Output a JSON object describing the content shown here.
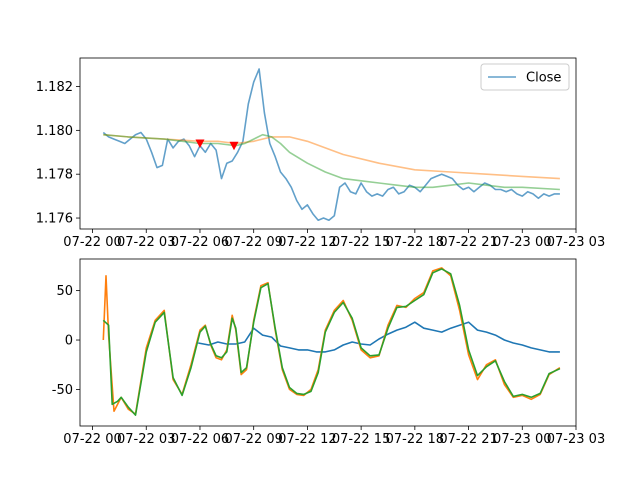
{
  "chart_data": [
    {
      "type": "line",
      "x_ticks": [
        "07-22 00",
        "07-22 03",
        "07-22 06",
        "07-22 09",
        "07-22 12",
        "07-22 15",
        "07-22 18",
        "07-22 21",
        "07-23 00",
        "07-23 03"
      ],
      "xlim_hours": [
        -0.7,
        27.0
      ],
      "ylim": [
        1.1755,
        1.1833
      ],
      "y_ticks": [
        "1.176",
        "1.178",
        "1.180",
        "1.182"
      ],
      "y_tick_values": [
        1.176,
        1.178,
        1.18,
        1.182
      ],
      "legend": {
        "position": "top-right",
        "entries": [
          "Close"
        ]
      },
      "series": [
        {
          "name": "Close",
          "color": "#1f77b4",
          "opacity": 0.7,
          "x": [
            0.6,
            0.9,
            1.2,
            1.5,
            1.8,
            2.1,
            2.4,
            2.7,
            3.0,
            3.3,
            3.6,
            3.9,
            4.2,
            4.5,
            4.8,
            5.1,
            5.4,
            5.7,
            6.0,
            6.3,
            6.6,
            6.9,
            7.2,
            7.5,
            7.8,
            8.1,
            8.4,
            8.7,
            9.0,
            9.3,
            9.6,
            9.9,
            10.2,
            10.5,
            10.8,
            11.1,
            11.4,
            11.7,
            12.0,
            12.3,
            12.6,
            12.9,
            13.2,
            13.5,
            13.8,
            14.1,
            14.4,
            14.7,
            15.0,
            15.3,
            15.6,
            15.9,
            16.2,
            16.5,
            16.8,
            17.1,
            17.4,
            17.7,
            18.0,
            18.3,
            18.6,
            18.9,
            19.2,
            19.5,
            19.8,
            20.1,
            20.4,
            20.7,
            21.0,
            21.3,
            21.6,
            21.9,
            22.2,
            22.5,
            22.8,
            23.1,
            23.4,
            23.7,
            24.0,
            24.3,
            24.6,
            24.9,
            25.2,
            25.5,
            25.8,
            26.1
          ],
          "y": [
            1.1799,
            1.1797,
            1.1796,
            1.1795,
            1.1794,
            1.1796,
            1.1798,
            1.1799,
            1.1796,
            1.179,
            1.1783,
            1.1784,
            1.1796,
            1.1792,
            1.1795,
            1.1796,
            1.1793,
            1.1788,
            1.1793,
            1.179,
            1.1794,
            1.1791,
            1.1778,
            1.1785,
            1.1786,
            1.179,
            1.1795,
            1.1812,
            1.1822,
            1.1828,
            1.1808,
            1.1794,
            1.1788,
            1.1781,
            1.1778,
            1.1774,
            1.1768,
            1.1764,
            1.1766,
            1.1762,
            1.1759,
            1.176,
            1.1759,
            1.1761,
            1.1774,
            1.1776,
            1.1772,
            1.1771,
            1.1776,
            1.1772,
            1.177,
            1.1771,
            1.177,
            1.1773,
            1.1774,
            1.1771,
            1.1772,
            1.1775,
            1.1774,
            1.1772,
            1.1775,
            1.1778,
            1.1779,
            1.178,
            1.1779,
            1.1778,
            1.1775,
            1.1773,
            1.1774,
            1.1772,
            1.1774,
            1.1776,
            1.1775,
            1.1773,
            1.1773,
            1.1772,
            1.1773,
            1.1771,
            1.177,
            1.1772,
            1.1771,
            1.1769,
            1.1771,
            1.177,
            1.1771,
            1.1771
          ]
        },
        {
          "color": "#ff7f0e",
          "opacity": 0.5,
          "x": [
            0.6,
            2,
            4,
            6,
            7,
            8,
            9,
            10,
            11,
            12,
            13,
            14,
            16,
            18,
            20,
            22,
            24,
            26.1
          ],
          "y": [
            1.1798,
            1.1797,
            1.1796,
            1.1795,
            1.1795,
            1.1794,
            1.1795,
            1.1797,
            1.1797,
            1.1795,
            1.1792,
            1.1789,
            1.1785,
            1.1782,
            1.1781,
            1.178,
            1.1779,
            1.1778
          ]
        },
        {
          "color": "#2ca02c",
          "opacity": 0.5,
          "x": [
            0.6,
            2,
            4,
            6,
            7,
            8,
            8.5,
            9,
            9.5,
            10,
            10.5,
            11,
            12,
            13,
            14,
            15,
            16,
            17,
            18,
            19,
            20,
            21,
            22,
            23,
            24,
            26.1
          ],
          "y": [
            1.1798,
            1.1797,
            1.1796,
            1.1794,
            1.1794,
            1.1793,
            1.1794,
            1.1796,
            1.1798,
            1.1797,
            1.1794,
            1.179,
            1.1785,
            1.1781,
            1.1778,
            1.1777,
            1.1776,
            1.1775,
            1.1774,
            1.1774,
            1.1775,
            1.1776,
            1.1775,
            1.1774,
            1.1774,
            1.1773
          ]
        }
      ],
      "markers": {
        "shape": "triangle-down",
        "color": "#ff0000",
        "points": [
          {
            "x": 6.0,
            "y": 1.1794
          },
          {
            "x": 7.9,
            "y": 1.1793
          }
        ]
      }
    },
    {
      "type": "line",
      "x_ticks": [
        "07-22 00",
        "07-22 03",
        "07-22 06",
        "07-22 09",
        "07-22 12",
        "07-22 15",
        "07-22 18",
        "07-22 21",
        "07-23 00",
        "07-23 03"
      ],
      "xlim_hours": [
        -0.7,
        27.0
      ],
      "ylim": [
        -87,
        82
      ],
      "y_ticks": [
        "-50",
        "0",
        "50"
      ],
      "y_tick_values": [
        -50,
        0,
        50
      ],
      "series": [
        {
          "color": "#1f77b4",
          "x": [
            5.9,
            6.5,
            7.0,
            7.5,
            8.0,
            8.5,
            9.0,
            9.5,
            10.0,
            10.5,
            11.0,
            11.5,
            12.0,
            12.5,
            13.0,
            13.5,
            14.0,
            14.5,
            15.0,
            15.5,
            16.0,
            16.5,
            17.0,
            17.5,
            18.0,
            18.5,
            19.0,
            19.5,
            20.0,
            20.5,
            21.0,
            21.5,
            22.0,
            22.5,
            23.0,
            23.5,
            24.0,
            24.5,
            25.0,
            25.5,
            26.1
          ],
          "y": [
            -3,
            -5,
            -2,
            -4,
            -4,
            -2,
            12,
            5,
            3,
            -6,
            -8,
            -10,
            -10,
            -12,
            -12,
            -10,
            -5,
            -2,
            -4,
            -5,
            1,
            6,
            10,
            13,
            18,
            12,
            10,
            8,
            12,
            15,
            18,
            10,
            8,
            5,
            0,
            -3,
            -5,
            -8,
            -10,
            -12,
            -12
          ]
        },
        {
          "color": "#ff7f0e",
          "x": [
            0.6,
            0.75,
            0.9,
            1.2,
            1.4,
            1.6,
            2.0,
            2.4,
            3.0,
            3.5,
            4.0,
            4.5,
            5.0,
            5.5,
            6.0,
            6.3,
            6.6,
            6.9,
            7.2,
            7.5,
            7.8,
            8.0,
            8.3,
            8.6,
            9.0,
            9.4,
            9.8,
            10.2,
            10.6,
            11.0,
            11.4,
            11.8,
            12.2,
            12.6,
            13.0,
            13.5,
            14.0,
            14.5,
            15.0,
            15.5,
            16.0,
            16.5,
            17.0,
            17.5,
            18.0,
            18.5,
            19.0,
            19.5,
            20.0,
            20.5,
            21.0,
            21.5,
            22.0,
            22.5,
            23.0,
            23.5,
            24.0,
            24.5,
            25.0,
            25.5,
            26.1
          ],
          "y": [
            0,
            65,
            5,
            -72,
            -65,
            -58,
            -70,
            -75,
            -8,
            20,
            30,
            -40,
            -55,
            -25,
            10,
            15,
            -5,
            -18,
            -20,
            -10,
            25,
            10,
            -35,
            -30,
            20,
            55,
            58,
            10,
            -30,
            -50,
            -55,
            -56,
            -50,
            -30,
            10,
            30,
            40,
            20,
            -10,
            -18,
            -16,
            15,
            35,
            33,
            42,
            48,
            70,
            73,
            65,
            30,
            -15,
            -40,
            -25,
            -20,
            -45,
            -58,
            -56,
            -60,
            -55,
            -35,
            -28
          ]
        },
        {
          "color": "#2ca02c",
          "x": [
            0.6,
            0.9,
            1.1,
            1.4,
            1.6,
            2.0,
            2.4,
            3.0,
            3.5,
            4.0,
            4.5,
            5.0,
            5.5,
            6.0,
            6.3,
            6.6,
            6.9,
            7.2,
            7.5,
            7.8,
            8.0,
            8.3,
            8.6,
            9.0,
            9.4,
            9.8,
            10.2,
            10.6,
            11.0,
            11.4,
            11.8,
            12.2,
            12.6,
            13.0,
            13.5,
            14.0,
            14.5,
            15.0,
            15.5,
            16.0,
            16.5,
            17.0,
            17.5,
            18.0,
            18.5,
            19.0,
            19.5,
            20.0,
            20.5,
            21.0,
            21.5,
            22.0,
            22.5,
            23.0,
            23.5,
            24.0,
            24.5,
            25.0,
            25.5,
            26.1
          ],
          "y": [
            20,
            15,
            -65,
            -62,
            -58,
            -68,
            -76,
            -12,
            18,
            28,
            -38,
            -56,
            -28,
            8,
            14,
            -4,
            -16,
            -18,
            -12,
            22,
            12,
            -33,
            -28,
            18,
            53,
            57,
            12,
            -28,
            -48,
            -54,
            -55,
            -52,
            -33,
            8,
            28,
            38,
            22,
            -8,
            -16,
            -15,
            12,
            33,
            34,
            40,
            46,
            68,
            72,
            67,
            35,
            -10,
            -36,
            -27,
            -21,
            -42,
            -57,
            -55,
            -58,
            -54,
            -34,
            -29
          ]
        }
      ]
    }
  ]
}
